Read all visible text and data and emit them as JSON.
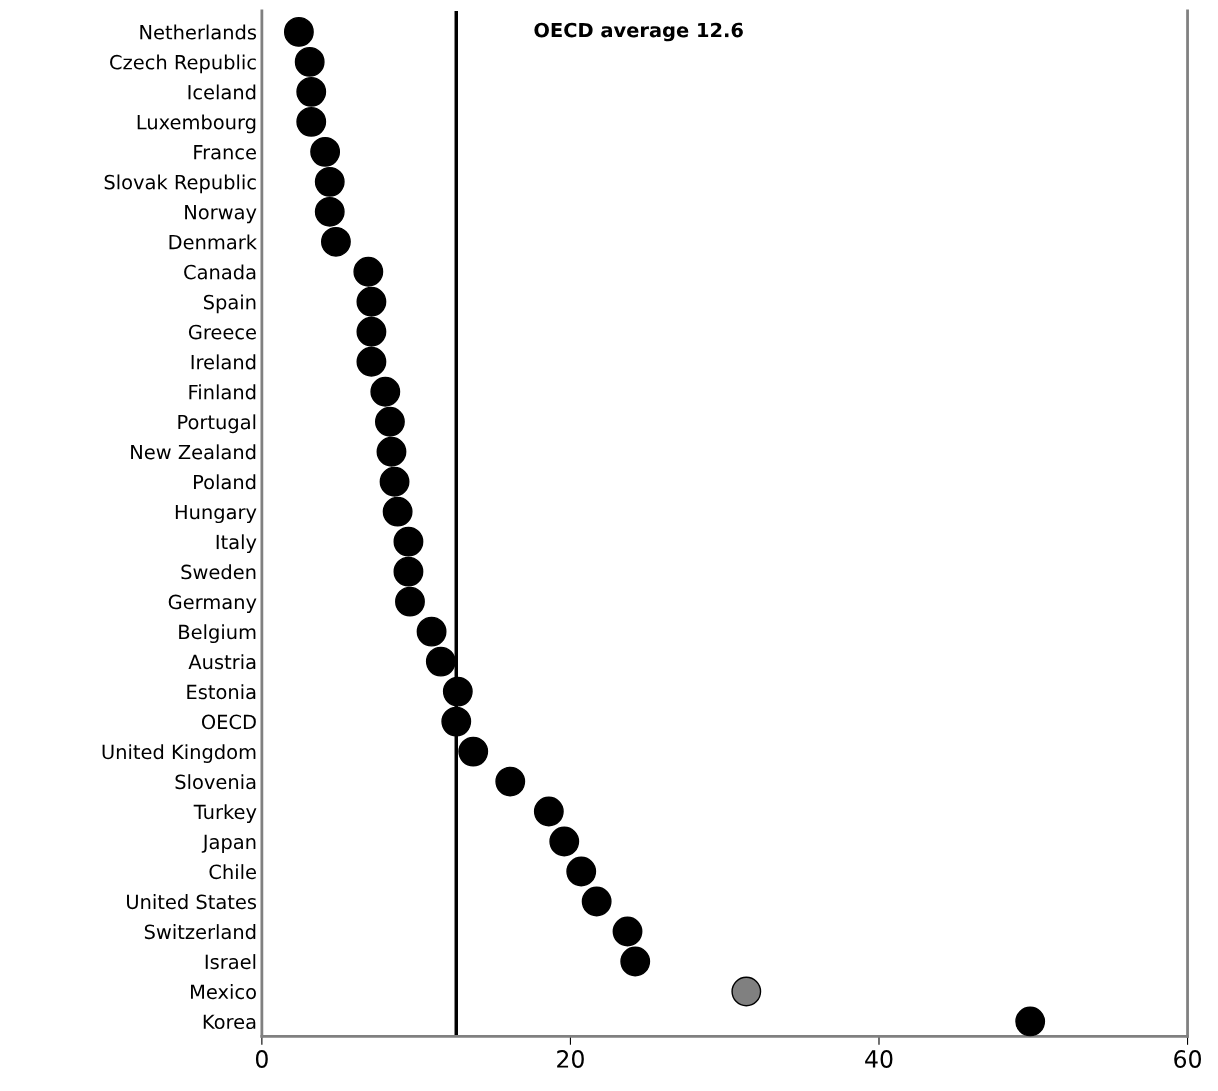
{
  "chart_data": {
    "type": "scatter",
    "orientation": "horizontal",
    "categories": [
      "Netherlands",
      "Czech Republic",
      "Iceland",
      "Luxembourg",
      "France",
      "Slovak Republic",
      "Norway",
      "Denmark",
      "Canada",
      "Spain",
      "Greece",
      "Ireland",
      "Finland",
      "Portugal",
      "New Zealand",
      "Poland",
      "Hungary",
      "Italy",
      "Sweden",
      "Germany",
      "Belgium",
      "Austria",
      "Estonia",
      "OECD",
      "United Kingdom",
      "Slovenia",
      "Turkey",
      "Japan",
      "Chile",
      "United States",
      "Switzerland",
      "Israel",
      "Mexico",
      "Korea"
    ],
    "values": [
      2.4,
      3.1,
      3.2,
      3.2,
      4.1,
      4.4,
      4.4,
      4.8,
      6.9,
      7.1,
      7.1,
      7.1,
      8.0,
      8.3,
      8.4,
      8.6,
      8.8,
      9.5,
      9.5,
      9.6,
      11.0,
      11.6,
      12.7,
      12.6,
      13.7,
      16.1,
      18.6,
      19.6,
      20.7,
      21.7,
      23.7,
      24.2,
      31.4,
      49.8
    ],
    "colors": [
      "#000000",
      "#000000",
      "#000000",
      "#000000",
      "#000000",
      "#000000",
      "#000000",
      "#000000",
      "#000000",
      "#000000",
      "#000000",
      "#000000",
      "#000000",
      "#000000",
      "#000000",
      "#000000",
      "#000000",
      "#000000",
      "#000000",
      "#000000",
      "#000000",
      "#000000",
      "#000000",
      "#000000",
      "#000000",
      "#000000",
      "#000000",
      "#000000",
      "#000000",
      "#000000",
      "#000000",
      "#000000",
      "#808080",
      "#000000"
    ],
    "xlim": [
      0,
      60
    ],
    "xticks": [
      0,
      20,
      40,
      60
    ],
    "marker": "circle",
    "ref_lines": [
      {
        "axis": "x",
        "value": 12.6,
        "label": "OECD average 12.6",
        "color": "#000000"
      }
    ]
  }
}
